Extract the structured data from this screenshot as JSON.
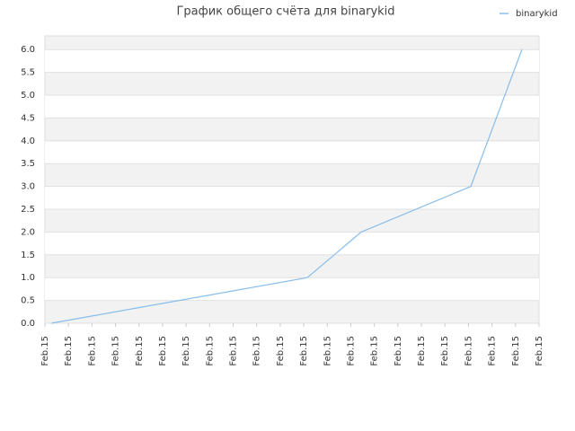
{
  "chart_data": {
    "type": "line",
    "title": "График общего счёта для binarykid",
    "xlim": [
      0,
      21
    ],
    "xticks": [
      {
        "value": 0,
        "label": "Feb.15"
      },
      {
        "value": 1,
        "label": "Feb.15"
      },
      {
        "value": 2,
        "label": "Feb.15"
      },
      {
        "value": 3,
        "label": "Feb.15"
      },
      {
        "value": 4,
        "label": "Feb.15"
      },
      {
        "value": 5,
        "label": "Feb.15"
      },
      {
        "value": 6,
        "label": "Feb.15"
      },
      {
        "value": 7,
        "label": "Feb.15"
      },
      {
        "value": 8,
        "label": "Feb.15"
      },
      {
        "value": 9,
        "label": "Feb.15"
      },
      {
        "value": 10,
        "label": "Feb.15"
      },
      {
        "value": 11,
        "label": "Feb.15"
      },
      {
        "value": 12,
        "label": "Feb.15"
      },
      {
        "value": 13,
        "label": "Feb.15"
      },
      {
        "value": 14,
        "label": "Feb.15"
      },
      {
        "value": 15,
        "label": "Feb.15"
      },
      {
        "value": 16,
        "label": "Feb.15"
      },
      {
        "value": 17,
        "label": "Feb.15"
      },
      {
        "value": 18,
        "label": "Feb.15"
      },
      {
        "value": 19,
        "label": "Feb.15"
      },
      {
        "value": 20,
        "label": "Feb.15"
      },
      {
        "value": 21,
        "label": "Feb.15"
      }
    ],
    "ylim": [
      0,
      6.3
    ],
    "yticks": [
      {
        "value": 0,
        "label": "0.0"
      },
      0.5,
      {
        "value": 1,
        "label": "1.0"
      },
      1.5,
      {
        "value": 2,
        "label": "2.0"
      },
      2.5,
      {
        "value": 3,
        "label": "3.0"
      },
      3.5,
      {
        "value": 4,
        "label": "4.0"
      },
      4.5,
      {
        "value": 5,
        "label": "5.0"
      },
      5.5,
      {
        "value": 6,
        "label": "6.0"
      }
    ],
    "grid": true,
    "legend": "top-right",
    "series": [
      {
        "name": "binarykid",
        "color": "#88bdea",
        "x": [
          0.27,
          11.15,
          13.44,
          18.1,
          20.27
        ],
        "values": [
          0,
          1,
          2,
          3,
          6
        ]
      }
    ]
  }
}
